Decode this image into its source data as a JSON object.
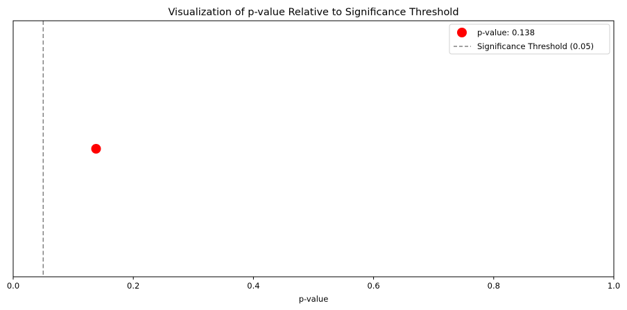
{
  "chart_data": {
    "type": "scatter",
    "title": "Visualization of p-value Relative to Significance Threshold",
    "xlabel": "p-value",
    "ylabel": "",
    "xlim": [
      0.0,
      1.0
    ],
    "ylim": [
      -1,
      1
    ],
    "x_ticks": [
      "0.0",
      "0.2",
      "0.4",
      "0.6",
      "0.8",
      "1.0"
    ],
    "y_ticks_visible": false,
    "grid": false,
    "legend_position": "upper right",
    "series": [
      {
        "name": "p-value: 0.138",
        "type": "scatter",
        "x": [
          0.138
        ],
        "y": [
          0
        ],
        "color": "#ff0000"
      }
    ],
    "reference_lines": [
      {
        "name": "Significance Threshold (0.05)",
        "orientation": "vertical",
        "x": 0.05,
        "style": "dashed",
        "color": "#808080"
      }
    ]
  }
}
